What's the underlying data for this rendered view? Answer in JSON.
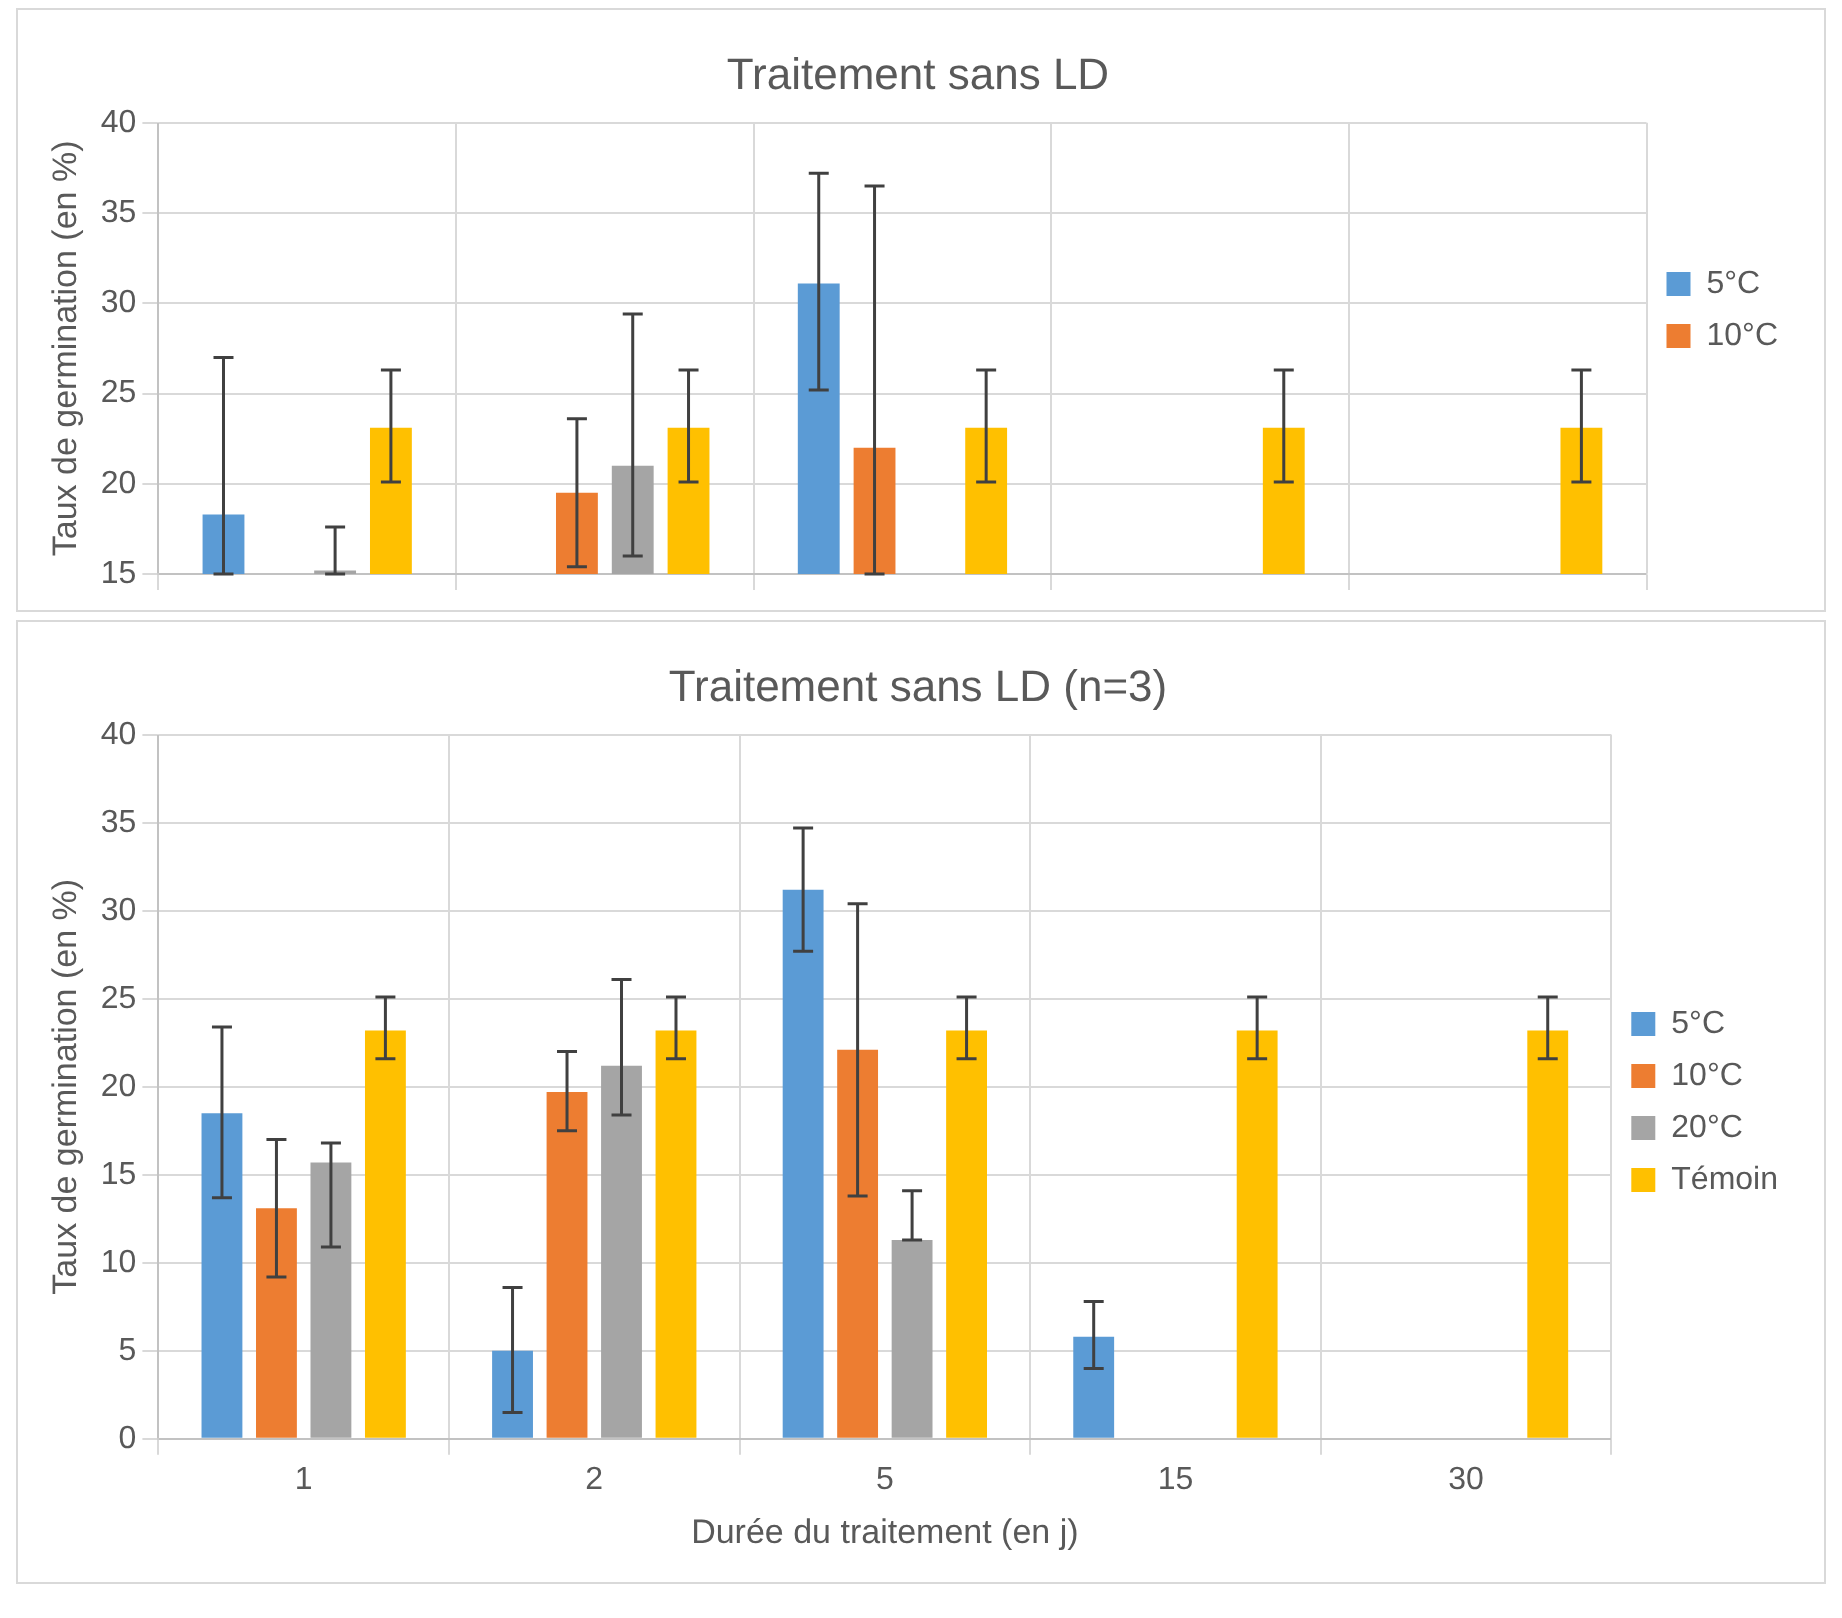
{
  "chart_data": [
    {
      "type": "bar",
      "title": "Traitement sans LD",
      "ylabel": "Taux de germination (en %)",
      "categories": [
        null,
        null,
        null,
        null,
        null
      ],
      "ylim": [
        15,
        40
      ],
      "yticks": [
        15,
        20,
        25,
        30,
        35,
        40
      ],
      "grid": true,
      "legend": "right",
      "tick_labels": "y",
      "series": [
        {
          "name": "5°C",
          "color": "#5b9bd5",
          "values": [
            18.3,
            null,
            31.1,
            null,
            null
          ],
          "errors": [
            [
              15,
              27
            ],
            null,
            [
              25.2,
              37.2
            ],
            null,
            null
          ]
        },
        {
          "name": "10°C",
          "color": "#ed7d31",
          "values": [
            null,
            19.5,
            22,
            null,
            null
          ],
          "errors": [
            null,
            [
              15.4,
              23.6
            ],
            [
              15,
              36.5
            ],
            null,
            null
          ]
        },
        {
          "color": "#a5a5a5",
          "values": [
            15.2,
            21,
            null,
            null,
            null
          ],
          "errors": [
            [
              15,
              17.6
            ],
            [
              16,
              29.4
            ],
            null,
            null,
            null
          ]
        },
        {
          "color": "#ffc000",
          "values": [
            23.1,
            23.1,
            23.1,
            23.1,
            23.1
          ],
          "errors": [
            [
              20.1,
              26.3
            ],
            [
              20.1,
              26.3
            ],
            [
              20.1,
              26.3
            ],
            [
              20.1,
              26.3
            ],
            [
              20.1,
              26.3
            ]
          ]
        }
      ]
    },
    {
      "type": "bar",
      "title": "Traitement sans LD (n=3)",
      "xlabel": "Durée du traitement (en j)",
      "ylabel": "Taux de germination (en %)",
      "categories": [
        "1",
        "2",
        "5",
        "15",
        "30"
      ],
      "ylim": [
        0,
        40
      ],
      "yticks": [
        0,
        5,
        10,
        15,
        20,
        25,
        30,
        35,
        40
      ],
      "grid": true,
      "legend": "right",
      "series": [
        {
          "name": "5°C",
          "color": "#5b9bd5",
          "values": [
            18.5,
            5,
            31.2,
            5.8,
            0
          ],
          "errors": [
            [
              13.7,
              23.4
            ],
            [
              1.5,
              8.6
            ],
            [
              27.7,
              34.7
            ],
            [
              4,
              7.8
            ],
            null
          ]
        },
        {
          "name": "10°C",
          "color": "#ed7d31",
          "values": [
            13.1,
            19.7,
            22.1,
            0,
            0
          ],
          "errors": [
            [
              9.2,
              17
            ],
            [
              17.5,
              22
            ],
            [
              13.8,
              30.4
            ],
            null,
            null
          ]
        },
        {
          "name": "20°C",
          "color": "#a5a5a5",
          "values": [
            15.7,
            21.2,
            11.3,
            0,
            0
          ],
          "errors": [
            [
              10.9,
              16.8
            ],
            [
              18.4,
              26.1
            ],
            [
              11.3,
              14.1
            ],
            null,
            null
          ]
        },
        {
          "name": "Témoin",
          "color": "#ffc000",
          "values": [
            23.2,
            23.2,
            23.2,
            23.2,
            23.2
          ],
          "errors": [
            [
              21.6,
              25.1
            ],
            [
              21.6,
              25.1
            ],
            [
              21.6,
              25.1
            ],
            [
              21.6,
              25.1
            ],
            [
              21.6,
              25.1
            ]
          ]
        }
      ]
    }
  ]
}
